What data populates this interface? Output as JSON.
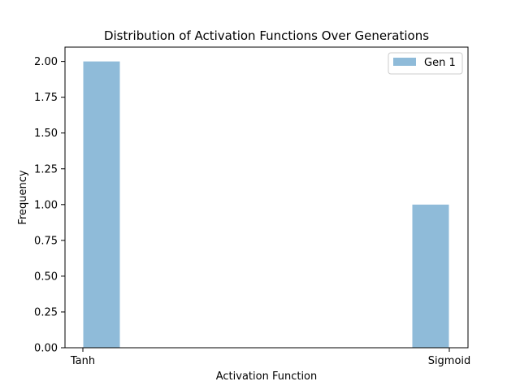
{
  "chart_data": {
    "type": "bar",
    "title": "Distribution of Activation Functions Over Generations",
    "xlabel": "Activation Function",
    "ylabel": "Frequency",
    "categories": [
      "Tanh",
      "Sigmoid"
    ],
    "series": [
      {
        "name": "Gen 1",
        "values": [
          2,
          1
        ],
        "color": "#8fbbd9"
      }
    ],
    "ylim": [
      0,
      2.1
    ],
    "yticks": [
      "0.00",
      "0.25",
      "0.50",
      "0.75",
      "1.00",
      "1.25",
      "1.50",
      "1.75",
      "2.00"
    ],
    "grid": false,
    "legend_position": "top-right"
  }
}
